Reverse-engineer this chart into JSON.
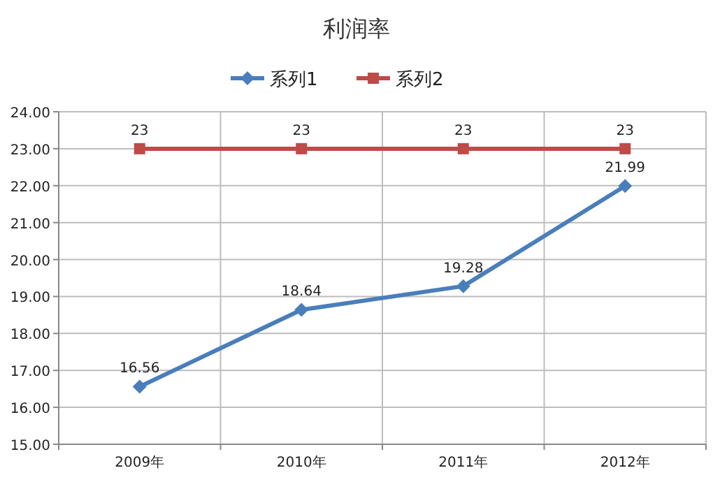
{
  "chart_data": {
    "type": "line",
    "title": "利润率",
    "categories": [
      "2009年",
      "2010年",
      "2011年",
      "2012年"
    ],
    "series": [
      {
        "name": "系列1",
        "color": "#4a7ebb",
        "marker": "diamond",
        "values": [
          16.56,
          18.64,
          19.28,
          21.99
        ]
      },
      {
        "name": "系列2",
        "color": "#be4b48",
        "marker": "square",
        "values": [
          23,
          23,
          23,
          23
        ]
      }
    ],
    "ylim": [
      15,
      24
    ],
    "yticks": [
      {
        "value": 15,
        "label": "15.00"
      },
      {
        "value": 16,
        "label": "16.00"
      },
      {
        "value": 17,
        "label": "17.00"
      },
      {
        "value": 18,
        "label": "18.00"
      },
      {
        "value": 19,
        "label": "19.00"
      },
      {
        "value": 20,
        "label": "20.00"
      },
      {
        "value": 21,
        "label": "21.00"
      },
      {
        "value": 22,
        "label": "22.00"
      },
      {
        "value": 23,
        "label": "23.00"
      },
      {
        "value": 24,
        "label": "24.00"
      }
    ],
    "grid": true,
    "legend": "top",
    "data_labels": true
  }
}
